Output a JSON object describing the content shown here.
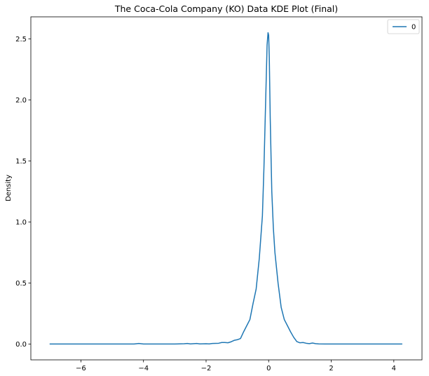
{
  "chart_data": {
    "type": "line",
    "title": "The Coca-Cola Company (KO) Data KDE Plot (Final)",
    "xlabel": "",
    "ylabel": "Density",
    "xlim": [
      -7.6,
      4.9
    ],
    "ylim": [
      -0.13,
      2.68
    ],
    "xticks": [
      -6,
      -4,
      -2,
      0,
      2,
      4
    ],
    "xtick_labels": [
      "−6",
      "−4",
      "−2",
      "0",
      "2",
      "4"
    ],
    "yticks": [
      0.0,
      0.5,
      1.0,
      1.5,
      2.0,
      2.5
    ],
    "ytick_labels": [
      "0.0",
      "0.5",
      "1.0",
      "1.5",
      "2.0",
      "2.5"
    ],
    "grid": false,
    "legend_position": "top-right",
    "series": [
      {
        "name": "0",
        "color": "#1f77b4",
        "x": [
          -7.0,
          -6.0,
          -5.0,
          -4.3,
          -4.15,
          -4.0,
          -3.5,
          -3.0,
          -2.7,
          -2.6,
          -2.5,
          -2.3,
          -2.2,
          -2.0,
          -1.9,
          -1.8,
          -1.6,
          -1.5,
          -1.4,
          -1.3,
          -1.2,
          -1.1,
          -1.0,
          -0.9,
          -0.8,
          -0.7,
          -0.6,
          -0.5,
          -0.4,
          -0.3,
          -0.2,
          -0.15,
          -0.1,
          -0.05,
          -0.02,
          0.0,
          0.02,
          0.05,
          0.1,
          0.15,
          0.2,
          0.3,
          0.4,
          0.5,
          0.6,
          0.7,
          0.8,
          0.9,
          1.0,
          1.1,
          1.2,
          1.3,
          1.4,
          1.5,
          1.6,
          1.8,
          2.0,
          3.0,
          4.27
        ],
        "y": [
          0.0,
          0.0,
          0.0,
          0.0,
          0.004,
          0.0,
          0.0,
          0.0,
          0.002,
          0.004,
          0.001,
          0.004,
          0.001,
          0.002,
          0.001,
          0.004,
          0.006,
          0.012,
          0.012,
          0.01,
          0.018,
          0.03,
          0.035,
          0.045,
          0.1,
          0.15,
          0.2,
          0.33,
          0.45,
          0.7,
          1.05,
          1.45,
          1.95,
          2.45,
          2.55,
          2.53,
          2.35,
          1.85,
          1.25,
          0.95,
          0.75,
          0.5,
          0.3,
          0.2,
          0.15,
          0.1,
          0.055,
          0.02,
          0.01,
          0.012,
          0.006,
          0.003,
          0.008,
          0.003,
          0.001,
          0.0,
          0.0,
          0.0,
          0.0
        ]
      }
    ]
  }
}
